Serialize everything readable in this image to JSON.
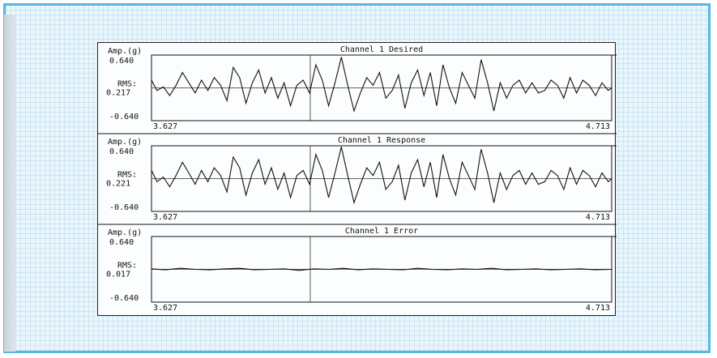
{
  "chart_data": [
    {
      "type": "line",
      "title": "Channel  1 Desired",
      "ylabel": "Amp.(g)",
      "ymax_label": "0.640",
      "ymin_label": "-0.640",
      "ylim": [
        -0.64,
        0.64
      ],
      "rms_label": "RMS:",
      "rms_value": "0.217",
      "x_start_label": "3.627",
      "x_end_label": "4.713",
      "xlim": [
        3.627,
        4.713
      ],
      "series": [
        {
          "x": [
            3.627,
            3.64,
            3.655,
            3.67,
            3.685,
            3.7,
            3.715,
            3.73,
            3.745,
            3.76,
            3.775,
            3.79,
            3.805,
            3.82,
            3.835,
            3.85,
            3.865,
            3.88,
            3.895,
            3.91,
            3.925,
            3.94,
            3.955,
            3.97,
            3.985,
            4.0,
            4.015,
            4.03,
            4.045,
            4.06,
            4.075,
            4.09,
            4.105,
            4.12,
            4.135,
            4.15,
            4.165,
            4.18,
            4.195,
            4.21,
            4.225,
            4.24,
            4.255,
            4.27,
            4.285,
            4.3,
            4.315,
            4.33,
            4.345,
            4.36,
            4.375,
            4.39,
            4.405,
            4.42,
            4.435,
            4.45,
            4.465,
            4.48,
            4.495,
            4.51,
            4.525,
            4.54,
            4.555,
            4.57,
            4.585,
            4.6,
            4.615,
            4.63,
            4.645,
            4.66,
            4.675,
            4.69,
            4.705,
            4.713
          ],
          "y": [
            0.15,
            -0.05,
            0.02,
            -0.15,
            0.05,
            0.3,
            0.1,
            -0.1,
            0.15,
            -0.05,
            0.2,
            0.05,
            -0.25,
            0.4,
            0.2,
            -0.3,
            0.1,
            0.35,
            -0.1,
            0.2,
            -0.2,
            0.1,
            -0.35,
            0.05,
            0.15,
            -0.1,
            0.45,
            0.15,
            -0.35,
            0.1,
            0.6,
            0.05,
            -0.45,
            -0.1,
            0.2,
            0.05,
            0.3,
            -0.2,
            -0.05,
            0.25,
            -0.4,
            0.1,
            0.35,
            -0.15,
            0.3,
            -0.35,
            0.45,
            0.0,
            -0.3,
            0.3,
            0.05,
            -0.2,
            0.55,
            0.1,
            -0.45,
            0.1,
            -0.2,
            0.05,
            0.15,
            -0.1,
            0.1,
            -0.1,
            -0.05,
            0.15,
            0.05,
            -0.2,
            0.2,
            -0.1,
            0.15,
            0.05,
            -0.15,
            0.1,
            -0.05,
            0.0
          ]
        }
      ]
    },
    {
      "type": "line",
      "title": "Channel  1 Response",
      "ylabel": "Amp.(g)",
      "ymax_label": "0.640",
      "ymin_label": "-0.640",
      "ylim": [
        -0.64,
        0.64
      ],
      "rms_label": "RMS:",
      "rms_value": "0.221",
      "x_start_label": "3.627",
      "x_end_label": "4.713",
      "xlim": [
        3.627,
        4.713
      ],
      "series": [
        {
          "x": [
            3.627,
            3.64,
            3.655,
            3.67,
            3.685,
            3.7,
            3.715,
            3.73,
            3.745,
            3.76,
            3.775,
            3.79,
            3.805,
            3.82,
            3.835,
            3.85,
            3.865,
            3.88,
            3.895,
            3.91,
            3.925,
            3.94,
            3.955,
            3.97,
            3.985,
            4.0,
            4.015,
            4.03,
            4.045,
            4.06,
            4.075,
            4.09,
            4.105,
            4.12,
            4.135,
            4.15,
            4.165,
            4.18,
            4.195,
            4.21,
            4.225,
            4.24,
            4.255,
            4.27,
            4.285,
            4.3,
            4.315,
            4.33,
            4.345,
            4.36,
            4.375,
            4.39,
            4.405,
            4.42,
            4.435,
            4.45,
            4.465,
            4.48,
            4.495,
            4.51,
            4.525,
            4.54,
            4.555,
            4.57,
            4.585,
            4.6,
            4.615,
            4.63,
            4.645,
            4.66,
            4.675,
            4.69,
            4.705,
            4.713
          ],
          "y": [
            0.16,
            -0.06,
            0.03,
            -0.16,
            0.06,
            0.32,
            0.11,
            -0.11,
            0.16,
            -0.06,
            0.21,
            0.06,
            -0.26,
            0.42,
            0.21,
            -0.32,
            0.11,
            0.37,
            -0.11,
            0.21,
            -0.21,
            0.11,
            -0.37,
            0.06,
            0.16,
            -0.11,
            0.47,
            0.16,
            -0.37,
            0.11,
            0.62,
            0.06,
            -0.47,
            -0.11,
            0.21,
            0.06,
            0.32,
            -0.21,
            -0.06,
            0.26,
            -0.42,
            0.11,
            0.37,
            -0.16,
            0.32,
            -0.37,
            0.47,
            0.0,
            -0.32,
            0.32,
            0.06,
            -0.21,
            0.57,
            0.11,
            -0.47,
            0.11,
            -0.21,
            0.06,
            0.16,
            -0.11,
            0.11,
            -0.11,
            -0.06,
            0.16,
            0.06,
            -0.21,
            0.21,
            -0.11,
            0.16,
            0.06,
            -0.16,
            0.11,
            -0.06,
            0.0
          ]
        }
      ]
    },
    {
      "type": "line",
      "title": "Channel  1 Error",
      "ylabel": "Amp.(g)",
      "ymax_label": "0.640",
      "ymin_label": "-0.640",
      "ylim": [
        -0.64,
        0.64
      ],
      "rms_label": "RMS:",
      "rms_value": "0.017",
      "x_start_label": "3.627",
      "x_end_label": "4.713",
      "xlim": [
        3.627,
        4.713
      ],
      "series": [
        {
          "x": [
            3.627,
            3.66,
            3.695,
            3.73,
            3.765,
            3.8,
            3.835,
            3.87,
            3.905,
            3.94,
            3.975,
            4.01,
            4.045,
            4.08,
            4.115,
            4.15,
            4.185,
            4.22,
            4.255,
            4.29,
            4.325,
            4.36,
            4.395,
            4.43,
            4.465,
            4.5,
            4.535,
            4.57,
            4.605,
            4.64,
            4.675,
            4.713
          ],
          "y": [
            0.01,
            -0.01,
            0.02,
            0.0,
            -0.01,
            0.01,
            0.02,
            -0.01,
            0.0,
            0.01,
            -0.02,
            0.01,
            0.0,
            0.02,
            -0.01,
            0.01,
            0.0,
            -0.01,
            0.02,
            0.0,
            -0.01,
            0.01,
            0.0,
            0.02,
            -0.01,
            0.0,
            0.01,
            -0.01,
            0.0,
            0.01,
            -0.01,
            0.0
          ]
        }
      ]
    }
  ]
}
